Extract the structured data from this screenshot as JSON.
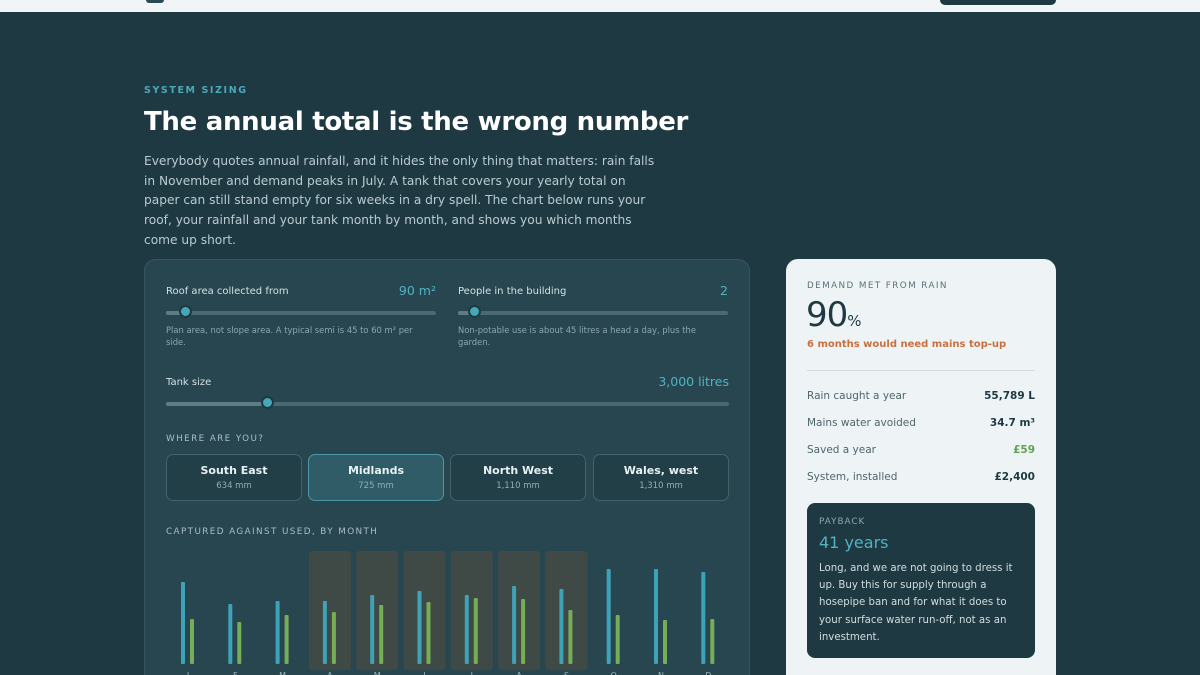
{
  "header": {
    "eyebrow": "SYSTEM SIZING",
    "title": "The annual total is the wrong number",
    "lede": "Everybody quotes annual rainfall, and it hides the only thing that matters: rain falls in November and demand peaks in July. A tank that covers your yearly total on paper can still stand empty for six weeks in a dry spell. The chart below runs your roof, your rainfall and your tank month by month, and shows you which months come up short."
  },
  "controls": {
    "roof": {
      "label": "Roof area collected from",
      "value": "90 m²",
      "hint": "Plan area, not slope area. A typical semi is 45 to 60 m² per side.",
      "level": 0.07
    },
    "people": {
      "label": "People in the building",
      "value": "2",
      "hint": "Non-potable use is about 45 litres a head a day, plus the garden.",
      "level": 0.06
    },
    "tank": {
      "label": "Tank size",
      "value": "3,000 litres",
      "level": 0.18
    }
  },
  "regions": {
    "label": "WHERE ARE YOU?",
    "items": [
      {
        "name": "South East",
        "mm": "634 mm",
        "active": false
      },
      {
        "name": "Midlands",
        "mm": "725 mm",
        "active": true
      },
      {
        "name": "North West",
        "mm": "1,110 mm",
        "active": false
      },
      {
        "name": "Wales, west",
        "mm": "1,310 mm",
        "active": false
      }
    ]
  },
  "chart_data": {
    "type": "bar",
    "title": "CAPTURED AGAINST USED, BY MONTH",
    "categories": [
      "J",
      "F",
      "M",
      "A",
      "M",
      "J",
      "J",
      "A",
      "S",
      "O",
      "N",
      "D"
    ],
    "series": [
      {
        "values": [
          8.2,
          6.0,
          6.3,
          6.3,
          6.9,
          7.3,
          6.9,
          7.8,
          7.5,
          9.5,
          9.5,
          9.2
        ]
      },
      {
        "values": [
          4.5,
          4.2,
          4.9,
          5.2,
          5.9,
          6.2,
          6.6,
          6.5,
          5.4,
          4.9,
          4.4,
          4.5
        ]
      }
    ],
    "shortfall_months": [
      3,
      4,
      5,
      6,
      7,
      8
    ],
    "colors": {
      "captured": "#3fa3b8",
      "used": "#76ad57",
      "shortfall": "#3f4946"
    },
    "ylim": [
      0,
      10
    ]
  },
  "results": {
    "label": "DEMAND MET FROM RAIN",
    "value": "90",
    "unit": "%",
    "warning": "6 months would need mains top-up",
    "stats": [
      {
        "label": "Rain caught a year",
        "value": "55,789 L",
        "green": false
      },
      {
        "label": "Mains water avoided",
        "value": "34.7 m³",
        "green": false
      },
      {
        "label": "Saved a year",
        "value": "£59",
        "green": true
      },
      {
        "label": "System, installed",
        "value": "£2,400",
        "green": false
      }
    ],
    "payback": {
      "label": "PAYBACK",
      "years": "41 years",
      "text": "Long, and we are not going to dress it up. Buy this for supply through a hosepipe ban and for what it does to your surface water run-off, not as an investment."
    }
  }
}
